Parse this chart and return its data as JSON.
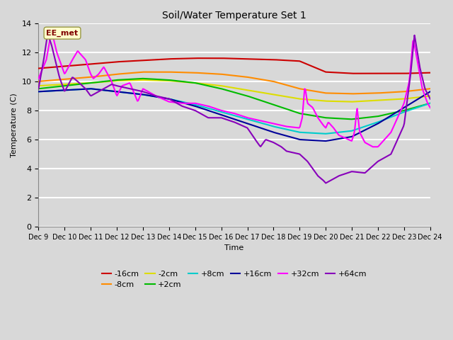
{
  "title": "Soil/Water Temperature Set 1",
  "xlabel": "Time",
  "ylabel": "Temperature (C)",
  "ylim": [
    0,
    14
  ],
  "xlim": [
    0,
    15
  ],
  "x_tick_labels": [
    "Dec 9",
    "Dec 10",
    "Dec 11",
    "Dec 12",
    "Dec 13",
    "Dec 14",
    "Dec 15",
    "Dec 16",
    "Dec 17",
    "Dec 18",
    "Dec 19",
    "Dec 20",
    "Dec 21",
    "Dec 22",
    "Dec 23",
    "Dec 24"
  ],
  "background_color": "#d8d8d8",
  "plot_bg_color": "#d8d8d8",
  "grid_color": "#ffffff",
  "annotation_label": "EE_met",
  "annotation_box_color": "#ffffcc",
  "annotation_text_color": "#800000",
  "series": {
    "-16cm": {
      "color": "#cc0000",
      "lw": 1.5
    },
    "-8cm": {
      "color": "#ff8c00",
      "lw": 1.5
    },
    "-2cm": {
      "color": "#dddd00",
      "lw": 1.5
    },
    "+2cm": {
      "color": "#00bb00",
      "lw": 1.5
    },
    "+8cm": {
      "color": "#00cccc",
      "lw": 1.5
    },
    "+16cm": {
      "color": "#000099",
      "lw": 1.5
    },
    "+32cm": {
      "color": "#ff00ff",
      "lw": 1.5
    },
    "+64cm": {
      "color": "#8800bb",
      "lw": 1.5
    }
  }
}
